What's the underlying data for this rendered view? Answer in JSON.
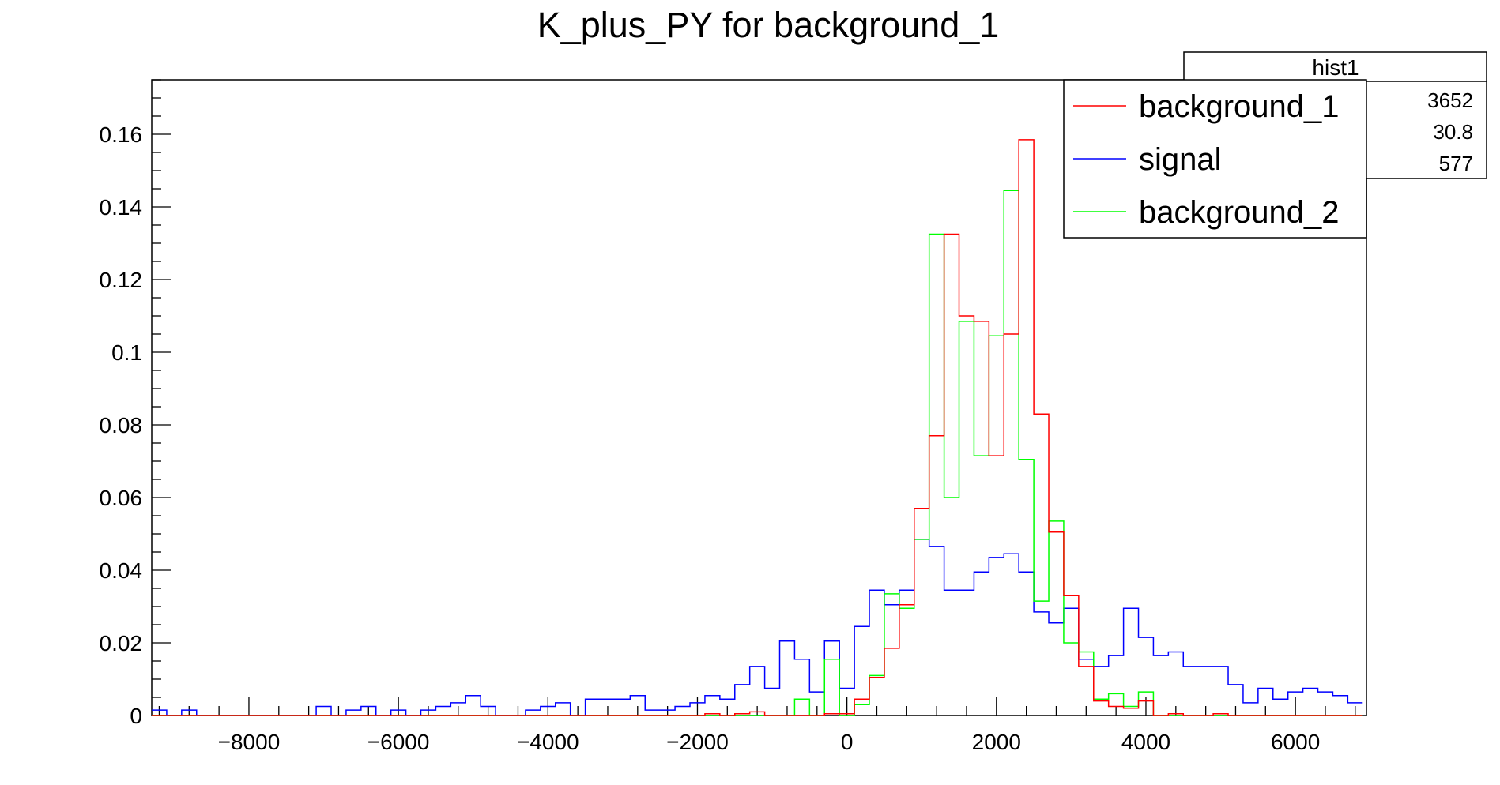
{
  "chart_data": {
    "type": "line",
    "title": "K_plus_PY for background_1",
    "xlim": [
      -9300,
      6950
    ],
    "ylim": [
      0,
      0.175
    ],
    "bins": {
      "start": -9300,
      "width": 200,
      "count": 81
    },
    "x_ticks": [
      -8000,
      -6000,
      -4000,
      -2000,
      0,
      2000,
      4000,
      6000
    ],
    "x_tick_labels": [
      "−8000",
      "−6000",
      "−4000",
      "−2000",
      "0",
      "2000",
      "4000",
      "6000"
    ],
    "y_ticks": [
      0,
      0.02,
      0.04,
      0.06,
      0.08,
      0.1,
      0.12,
      0.14,
      0.16
    ],
    "y_tick_labels": [
      "0",
      "0.02",
      "0.04",
      "0.06",
      "0.08",
      "0.1",
      "0.12",
      "0.14",
      "0.16"
    ],
    "stats_box": {
      "name": "hist1",
      "values": [
        "3652",
        "30.8",
        "577"
      ]
    },
    "legend": [
      {
        "label": "background_1",
        "color": "#ff0000"
      },
      {
        "label": "signal",
        "color": "#0000ff"
      },
      {
        "label": "background_2",
        "color": "#00ff00"
      }
    ],
    "series": [
      {
        "name": "background_1",
        "color": "#ff0000",
        "values": [
          0,
          0,
          0,
          0,
          0,
          0,
          0,
          0,
          0,
          0,
          0,
          0,
          0,
          0,
          0,
          0,
          0,
          0,
          0,
          0,
          0,
          0,
          0,
          0,
          0,
          0,
          0,
          0,
          0,
          0,
          0,
          0,
          0,
          0,
          0,
          0,
          0,
          0.0005,
          0,
          0.0005,
          0.001,
          0,
          0,
          0,
          0,
          0.0005,
          0.0005,
          0.0045,
          0.0105,
          0.0185,
          0.0305,
          0.057,
          0.077,
          0.1325,
          0.11,
          0.1085,
          0.0715,
          0.105,
          0.1585,
          0.083,
          0.0505,
          0.033,
          0.0135,
          0.004,
          0.0025,
          0.002,
          0.004,
          0,
          0.0005,
          0,
          0,
          0.0005,
          0,
          0,
          0,
          0,
          0,
          0,
          0,
          0,
          0
        ]
      },
      {
        "name": "signal",
        "color": "#0000ff",
        "values": [
          0.0015,
          0,
          0.0015,
          0,
          0,
          0,
          0,
          0,
          0,
          0,
          0,
          0.0025,
          0,
          0.0015,
          0.0025,
          0,
          0.0015,
          0,
          0.0015,
          0.0025,
          0.0035,
          0.0055,
          0.0025,
          0,
          0,
          0.0015,
          0.0025,
          0.0035,
          0,
          0.0045,
          0.0045,
          0.0045,
          0.0055,
          0.0015,
          0.0015,
          0.0025,
          0.0035,
          0.0055,
          0.0045,
          0.0085,
          0.0135,
          0.0075,
          0.0205,
          0.0155,
          0.0065,
          0.0205,
          0.0075,
          0.0245,
          0.0345,
          0.0305,
          0.0345,
          0.0485,
          0.0465,
          0.0345,
          0.0345,
          0.0395,
          0.0435,
          0.0445,
          0.0395,
          0.0285,
          0.0255,
          0.0295,
          0.0155,
          0.0135,
          0.0165,
          0.0295,
          0.0215,
          0.0165,
          0.0175,
          0.0135,
          0.0135,
          0.0135,
          0.0085,
          0.0035,
          0.0075,
          0.0045,
          0.0065,
          0.0075,
          0.0065,
          0.0055,
          0.0035
        ]
      },
      {
        "name": "background_2",
        "color": "#00ff00",
        "values": [
          0,
          0,
          0,
          0,
          0,
          0,
          0,
          0,
          0,
          0,
          0,
          0,
          0,
          0,
          0,
          0,
          0,
          0,
          0,
          0,
          0,
          0,
          0,
          0,
          0,
          0,
          0,
          0,
          0,
          0,
          0,
          0,
          0,
          0,
          0,
          0,
          0,
          0,
          0,
          0,
          0,
          0,
          0,
          0.0045,
          0,
          0.0155,
          0,
          0.003,
          0.011,
          0.0335,
          0.0295,
          0.0485,
          0.1325,
          0.06,
          0.1085,
          0.0715,
          0.1045,
          0.1445,
          0.0705,
          0.0315,
          0.0535,
          0.02,
          0.0175,
          0.0045,
          0.006,
          0.0025,
          0.0065,
          0,
          0,
          0,
          0,
          0,
          0,
          0,
          0,
          0,
          0,
          0,
          0,
          0,
          0
        ]
      }
    ]
  }
}
